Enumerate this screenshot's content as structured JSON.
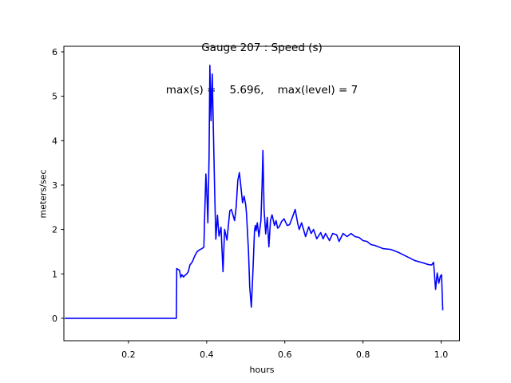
{
  "figure": {
    "background": "#ffffff",
    "text_color": "#000000"
  },
  "chart_data": {
    "type": "line",
    "title": "Gauge 207 : Speed (s)",
    "subtitle": "max(s) =    5.696,    max(level) = 7",
    "xlabel": "hours",
    "ylabel": "meters/sec",
    "max_s": 5.696,
    "max_level": 7,
    "gauge_id": 207,
    "xlim": [
      0.0347,
      1.0469
    ],
    "ylim": [
      -0.505,
      6.126
    ],
    "xticks": [
      0.2,
      0.4,
      0.6,
      0.8,
      1.0
    ],
    "xtick_labels": [
      "0.2",
      "0.4",
      "0.6",
      "0.8",
      "1.0"
    ],
    "yticks": [
      0,
      1,
      2,
      3,
      4,
      5,
      6
    ],
    "ytick_labels": [
      "0",
      "1",
      "2",
      "3",
      "4",
      "5",
      "6"
    ],
    "grid": false,
    "legend": null,
    "line_color": "#0000ff",
    "line_width": 1.6,
    "axis_color": "#000000",
    "series": [
      {
        "name": "Speed (s)",
        "points": [
          [
            0.0367,
            0.0
          ],
          [
            0.3224,
            0.0
          ],
          [
            0.3235,
            1.12
          ],
          [
            0.3306,
            1.08
          ],
          [
            0.3337,
            0.92
          ],
          [
            0.3367,
            0.98
          ],
          [
            0.3408,
            0.93
          ],
          [
            0.3449,
            0.97
          ],
          [
            0.349,
            1.0
          ],
          [
            0.3531,
            1.05
          ],
          [
            0.3571,
            1.2
          ],
          [
            0.3633,
            1.27
          ],
          [
            0.3694,
            1.4
          ],
          [
            0.3755,
            1.5
          ],
          [
            0.3816,
            1.54
          ],
          [
            0.3878,
            1.57
          ],
          [
            0.3929,
            1.6
          ],
          [
            0.3949,
            2.3
          ],
          [
            0.398,
            3.25
          ],
          [
            0.401,
            2.7
          ],
          [
            0.4031,
            2.15
          ],
          [
            0.4061,
            3.6
          ],
          [
            0.4082,
            5.696
          ],
          [
            0.4112,
            4.45
          ],
          [
            0.4143,
            5.5
          ],
          [
            0.4173,
            4.2
          ],
          [
            0.4204,
            2.9
          ],
          [
            0.4235,
            1.78
          ],
          [
            0.4276,
            2.32
          ],
          [
            0.4316,
            1.85
          ],
          [
            0.4367,
            2.05
          ],
          [
            0.4418,
            1.05
          ],
          [
            0.4459,
            2.0
          ],
          [
            0.452,
            1.76
          ],
          [
            0.4592,
            2.42
          ],
          [
            0.4633,
            2.45
          ],
          [
            0.4714,
            2.2
          ],
          [
            0.4755,
            2.5
          ],
          [
            0.4796,
            3.1
          ],
          [
            0.4837,
            3.28
          ],
          [
            0.4878,
            2.95
          ],
          [
            0.4918,
            2.6
          ],
          [
            0.4959,
            2.75
          ],
          [
            0.5,
            2.55
          ],
          [
            0.502,
            2.35
          ],
          [
            0.5041,
            2.0
          ],
          [
            0.5071,
            1.5
          ],
          [
            0.5102,
            0.7
          ],
          [
            0.5143,
            0.25
          ],
          [
            0.5184,
            1.06
          ],
          [
            0.5224,
            1.97
          ],
          [
            0.5245,
            2.09
          ],
          [
            0.5265,
            1.97
          ],
          [
            0.5296,
            2.15
          ],
          [
            0.5337,
            1.84
          ],
          [
            0.5388,
            2.2
          ],
          [
            0.5418,
            3.0
          ],
          [
            0.5439,
            3.78
          ],
          [
            0.5469,
            2.45
          ],
          [
            0.551,
            1.9
          ],
          [
            0.5551,
            2.27
          ],
          [
            0.5592,
            1.61
          ],
          [
            0.5633,
            2.2
          ],
          [
            0.5673,
            2.33
          ],
          [
            0.5735,
            2.09
          ],
          [
            0.5776,
            2.2
          ],
          [
            0.5816,
            2.03
          ],
          [
            0.5857,
            2.06
          ],
          [
            0.5918,
            2.18
          ],
          [
            0.598,
            2.24
          ],
          [
            0.6061,
            2.09
          ],
          [
            0.6122,
            2.11
          ],
          [
            0.6184,
            2.25
          ],
          [
            0.6265,
            2.45
          ],
          [
            0.6327,
            2.15
          ],
          [
            0.6367,
            2.0
          ],
          [
            0.6429,
            2.15
          ],
          [
            0.6531,
            1.84
          ],
          [
            0.6612,
            2.06
          ],
          [
            0.6673,
            1.91
          ],
          [
            0.6735,
            2.0
          ],
          [
            0.6816,
            1.79
          ],
          [
            0.6918,
            1.93
          ],
          [
            0.698,
            1.79
          ],
          [
            0.7041,
            1.91
          ],
          [
            0.7143,
            1.75
          ],
          [
            0.7224,
            1.91
          ],
          [
            0.7327,
            1.88
          ],
          [
            0.7388,
            1.73
          ],
          [
            0.749,
            1.91
          ],
          [
            0.7592,
            1.84
          ],
          [
            0.7694,
            1.91
          ],
          [
            0.7796,
            1.84
          ],
          [
            0.7898,
            1.82
          ],
          [
            0.8,
            1.75
          ],
          [
            0.8102,
            1.73
          ],
          [
            0.8204,
            1.66
          ],
          [
            0.8306,
            1.64
          ],
          [
            0.851,
            1.57
          ],
          [
            0.8714,
            1.55
          ],
          [
            0.8918,
            1.48
          ],
          [
            0.9122,
            1.39
          ],
          [
            0.9327,
            1.3
          ],
          [
            0.9531,
            1.25
          ],
          [
            0.9673,
            1.21
          ],
          [
            0.9755,
            1.2
          ],
          [
            0.9806,
            1.26
          ],
          [
            0.9857,
            0.65
          ],
          [
            0.9898,
            1.02
          ],
          [
            0.9939,
            0.79
          ],
          [
            0.998,
            0.95
          ],
          [
            1.001,
            0.98
          ],
          [
            1.0041,
            0.18
          ]
        ]
      }
    ]
  }
}
